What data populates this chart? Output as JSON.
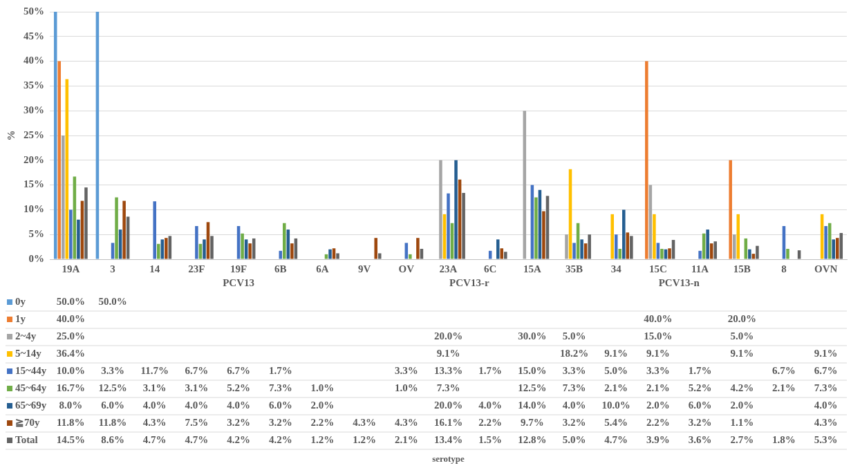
{
  "chart_data": {
    "type": "bar",
    "categories": [
      "19A",
      "3",
      "14",
      "23F",
      "19F",
      "6B",
      "6A",
      "9V",
      "OV",
      "23A",
      "6C",
      "15A",
      "35B",
      "34",
      "15C",
      "11A",
      "15B",
      "8",
      "OVN"
    ],
    "ylabel": "%",
    "ylim": [
      0,
      50
    ],
    "yticks": [
      {
        "value": 0,
        "label": "0%"
      },
      {
        "value": 5,
        "label": "5%"
      },
      {
        "value": 10,
        "label": "10%"
      },
      {
        "value": 15,
        "label": "15%"
      },
      {
        "value": 20,
        "label": "20%"
      },
      {
        "value": 25,
        "label": "25%"
      },
      {
        "value": 30,
        "label": "30%"
      },
      {
        "value": 35,
        "label": "35%"
      },
      {
        "value": 40,
        "label": "40%"
      },
      {
        "value": 45,
        "label": "45%"
      },
      {
        "value": 50,
        "label": "50%"
      }
    ],
    "grid": "y",
    "legend": "bottom",
    "annotations": [
      "PCV13",
      "PCV13-r",
      "PCV13-n",
      "serotype"
    ],
    "series": [
      {
        "name": "0y",
        "color": "#5b9bd5",
        "values": [
          50.0,
          50.0,
          null,
          null,
          null,
          null,
          null,
          null,
          null,
          null,
          null,
          null,
          null,
          null,
          null,
          null,
          null,
          null,
          null
        ],
        "value_labels": [
          "50.0%",
          "50.0%",
          null,
          null,
          null,
          null,
          null,
          null,
          null,
          null,
          null,
          null,
          null,
          null,
          null,
          null,
          null,
          null,
          null
        ]
      },
      {
        "name": "1y",
        "color": "#ed7d31",
        "values": [
          40.0,
          null,
          null,
          null,
          null,
          null,
          null,
          null,
          null,
          null,
          null,
          null,
          null,
          null,
          40.0,
          null,
          20.0,
          null,
          null
        ],
        "value_labels": [
          "40.0%",
          null,
          null,
          null,
          null,
          null,
          null,
          null,
          null,
          null,
          null,
          null,
          null,
          null,
          "40.0%",
          null,
          "20.0%",
          null,
          null
        ]
      },
      {
        "name": "2~4y",
        "color": "#a5a5a5",
        "values": [
          25.0,
          null,
          null,
          null,
          null,
          null,
          null,
          null,
          null,
          20.0,
          null,
          30.0,
          5.0,
          null,
          15.0,
          null,
          5.0,
          null,
          null
        ],
        "value_labels": [
          "25.0%",
          null,
          null,
          null,
          null,
          null,
          null,
          null,
          null,
          "20.0%",
          null,
          "30.0%",
          "5.0%",
          null,
          "15.0%",
          null,
          "5.0%",
          null,
          null
        ]
      },
      {
        "name": "5~14y",
        "color": "#ffc000",
        "values": [
          36.4,
          null,
          null,
          null,
          null,
          null,
          null,
          null,
          null,
          9.1,
          null,
          null,
          18.2,
          9.1,
          9.1,
          null,
          9.1,
          null,
          9.1
        ],
        "value_labels": [
          "36.4%",
          null,
          null,
          null,
          null,
          null,
          null,
          null,
          null,
          "9.1%",
          null,
          null,
          "18.2%",
          "9.1%",
          "9.1%",
          null,
          "9.1%",
          null,
          "9.1%"
        ]
      },
      {
        "name": "15~44y",
        "color": "#4472c4",
        "values": [
          10.0,
          3.3,
          11.7,
          6.7,
          6.7,
          1.7,
          null,
          null,
          3.3,
          13.3,
          1.7,
          15.0,
          3.3,
          5.0,
          3.3,
          1.7,
          null,
          6.7,
          6.7
        ],
        "value_labels": [
          "10.0%",
          "3.3%",
          "11.7%",
          "6.7%",
          "6.7%",
          "1.7%",
          null,
          null,
          "3.3%",
          "13.3%",
          "1.7%",
          "15.0%",
          "3.3%",
          "5.0%",
          "3.3%",
          "1.7%",
          null,
          "6.7%",
          "6.7%"
        ]
      },
      {
        "name": "45~64y",
        "color": "#70ad47",
        "values": [
          16.7,
          12.5,
          3.1,
          3.1,
          5.2,
          7.3,
          1.0,
          null,
          1.0,
          7.3,
          null,
          12.5,
          7.3,
          2.1,
          2.1,
          5.2,
          4.2,
          2.1,
          7.3
        ],
        "value_labels": [
          "16.7%",
          "12.5%",
          "3.1%",
          "3.1%",
          "5.2%",
          "7.3%",
          "1.0%",
          null,
          "1.0%",
          "7.3%",
          null,
          "12.5%",
          "7.3%",
          "2.1%",
          "2.1%",
          "5.2%",
          "4.2%",
          "2.1%",
          "7.3%"
        ]
      },
      {
        "name": "65~69y",
        "color": "#255e91",
        "values": [
          8.0,
          6.0,
          4.0,
          4.0,
          4.0,
          6.0,
          2.0,
          null,
          null,
          20.0,
          4.0,
          14.0,
          4.0,
          10.0,
          2.0,
          6.0,
          2.0,
          null,
          4.0
        ],
        "value_labels": [
          "8.0%",
          "6.0%",
          "4.0%",
          "4.0%",
          "4.0%",
          "6.0%",
          "2.0%",
          null,
          null,
          "20.0%",
          "4.0%",
          "14.0%",
          "4.0%",
          "10.0%",
          "2.0%",
          "6.0%",
          "2.0%",
          null,
          "4.0%"
        ]
      },
      {
        "name": "≧70y",
        "color": "#9e480e",
        "values": [
          11.8,
          11.8,
          4.3,
          7.5,
          3.2,
          3.2,
          2.2,
          4.3,
          4.3,
          16.1,
          2.2,
          9.7,
          3.2,
          5.4,
          2.2,
          3.2,
          1.1,
          null,
          4.3
        ],
        "value_labels": [
          "11.8%",
          "11.8%",
          "4.3%",
          "7.5%",
          "3.2%",
          "3.2%",
          "2.2%",
          "4.3%",
          "4.3%",
          "16.1%",
          "2.2%",
          "9.7%",
          "3.2%",
          "5.4%",
          "2.2%",
          "3.2%",
          "1.1%",
          null,
          "4.3%"
        ]
      },
      {
        "name": "Total",
        "color": "#636363",
        "values": [
          14.5,
          8.6,
          4.7,
          4.7,
          4.2,
          4.2,
          1.2,
          1.2,
          2.1,
          13.4,
          1.5,
          12.8,
          5.0,
          4.7,
          3.9,
          3.6,
          2.7,
          1.8,
          5.3
        ],
        "value_labels": [
          "14.5%",
          "8.6%",
          "4.7%",
          "4.7%",
          "4.2%",
          "4.2%",
          "1.2%",
          "1.2%",
          "2.1%",
          "13.4%",
          "1.5%",
          "12.8%",
          "5.0%",
          "4.7%",
          "3.9%",
          "3.6%",
          "2.7%",
          "1.8%",
          "5.3%"
        ]
      }
    ]
  }
}
